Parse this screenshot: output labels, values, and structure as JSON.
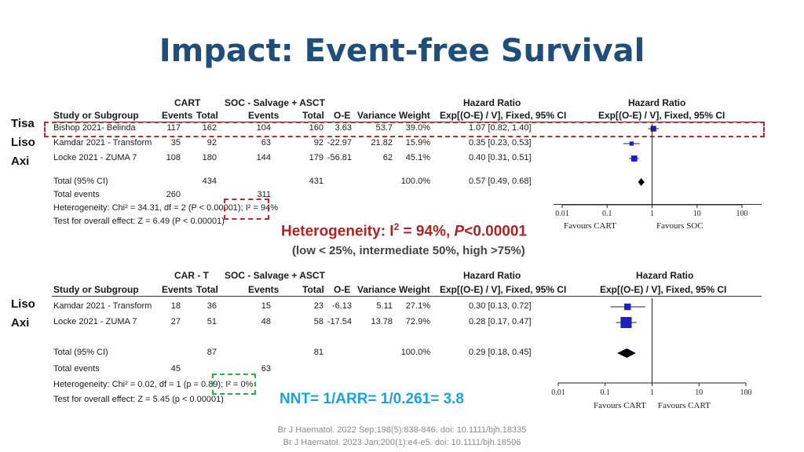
{
  "slide": {
    "title": "Impact: Event-free Survival",
    "side_labels_top": [
      "Tisa",
      "Liso",
      "Axi"
    ],
    "side_labels_bottom": [
      "Liso",
      "Axi"
    ],
    "annotation_heterogeneity": "Heterogeneity: I",
    "annotation_heterogeneity_sup": "2",
    "annotation_heterogeneity_rest": " = 94%, ",
    "annotation_heterogeneity_p": "P",
    "annotation_heterogeneity_pval": "<0.00001",
    "annotation_scale": "(low < 25%, intermediate 50%, high >75%)",
    "annotation_nnt": "NNT= 1/ARR= 1/0.261= 3.8",
    "references": [
      "Br J Haematol. 2022 Sep;198(5):838-846. doi: 10.1111/bjh.18335",
      "Br J Haematol. 2023 Jan;200(1):e4-e5. doi: 10.1111/bjh.18506"
    ],
    "colors": {
      "title": "#1f4e79",
      "heterogeneity": "#b22222",
      "nnt": "#1aa3e0",
      "marker": "#1f1fbf",
      "red_box": "#c0282d",
      "green_box": "#2eaa4a"
    }
  },
  "chart_data": [
    {
      "type": "forest",
      "group1_label": "CART",
      "group2_label": "SOC - Salvage + ASCT",
      "columns": [
        "Study or Subgroup",
        "Events",
        "Total",
        "Events",
        "Total",
        "O-E",
        "Variance",
        "Weight",
        "Hazard Ratio",
        "Hazard Ratio"
      ],
      "ci_header": "Exp[(O-E) / V], Fixed, 95% CI",
      "studies": [
        {
          "name": "Bishop 2021- Belinda",
          "e1": "117",
          "n1": "162",
          "e2": "104",
          "n2": "160",
          "oe": "3.63",
          "var": "53.7",
          "weight": "39.0%",
          "hr_text": "1.07 [0.82, 1.40]",
          "hr": 1.07,
          "lo": 0.82,
          "hi": 1.4
        },
        {
          "name": "Kamdar 2021 - Transform",
          "e1": "35",
          "n1": "92",
          "e2": "63",
          "n2": "92",
          "oe": "-22.97",
          "var": "21.82",
          "weight": "15.9%",
          "hr_text": "0.35 [0.23, 0.53]",
          "hr": 0.35,
          "lo": 0.23,
          "hi": 0.53
        },
        {
          "name": "Locke 2021 - ZUMA 7",
          "e1": "108",
          "n1": "180",
          "e2": "144",
          "n2": "179",
          "oe": "-56.81",
          "var": "62",
          "weight": "45.1%",
          "hr_text": "0.40 [0.31, 0.51]",
          "hr": 0.4,
          "lo": 0.31,
          "hi": 0.51
        }
      ],
      "total": {
        "label": "Total (95% CI)",
        "n1": "434",
        "n2": "431",
        "weight": "100.0%",
        "hr_text": "0.57 [0.49, 0.68]",
        "hr": 0.57,
        "lo": 0.49,
        "hi": 0.68
      },
      "total_events": {
        "label": "Total events",
        "e1": "260",
        "e2": "311"
      },
      "heterogeneity": "Heterogeneity: Chi² = 34.31, df = 2 (P < 0.00001); I² = 94%",
      "overall_effect": "Test for overall effect: Z = 6.49 (P < 0.00001)",
      "x_ticks": [
        "0.01",
        "0.1",
        "1",
        "10",
        "100"
      ],
      "xlim": [
        0.01,
        100
      ],
      "x_scale": "log",
      "favours_left": "Favours CART",
      "favours_right": "Favours SOC"
    },
    {
      "type": "forest",
      "group1_label": "CAR - T",
      "group2_label": "SOC - Salvage + ASCT",
      "columns": [
        "Study or Subgroup",
        "Events",
        "Total",
        "Events",
        "Total",
        "O-E",
        "Variance",
        "Weight",
        "Hazard Ratio",
        "Hazard Ratio"
      ],
      "ci_header": "Exp[(O-E) / V], Fixed, 95% CI",
      "studies": [
        {
          "name": "Kamdar 2021 - Transform",
          "e1": "18",
          "n1": "36",
          "e2": "15",
          "n2": "23",
          "oe": "-6.13",
          "var": "5.11",
          "weight": "27.1%",
          "hr_text": "0.30 [0.13, 0.72]",
          "hr": 0.3,
          "lo": 0.13,
          "hi": 0.72
        },
        {
          "name": "Locke 2021 - ZUMA 7",
          "e1": "27",
          "n1": "51",
          "e2": "48",
          "n2": "58",
          "oe": "-17.54",
          "var": "13.78",
          "weight": "72.9%",
          "hr_text": "0.28 [0.17, 0.47]",
          "hr": 0.28,
          "lo": 0.17,
          "hi": 0.47
        }
      ],
      "total": {
        "label": "Total (95% CI)",
        "n1": "87",
        "n2": "81",
        "weight": "100.0%",
        "hr_text": "0.29 [0.18, 0.45]",
        "hr": 0.29,
        "lo": 0.18,
        "hi": 0.45
      },
      "total_events": {
        "label": "Total events",
        "e1": "45",
        "e2": "63"
      },
      "heterogeneity": "Heterogeneity: Chi² = 0.02, df = 1 (p = 0.89); I² = 0%",
      "overall_effect": "Test for overall effect: Z = 5.45 (p < 0.00001)",
      "x_ticks": [
        "0.01",
        "0.1",
        "1",
        "10",
        "100"
      ],
      "xlim": [
        0.01,
        100
      ],
      "x_scale": "log",
      "favours_left": "Favours CART",
      "favours_right": "Favours CART"
    }
  ]
}
